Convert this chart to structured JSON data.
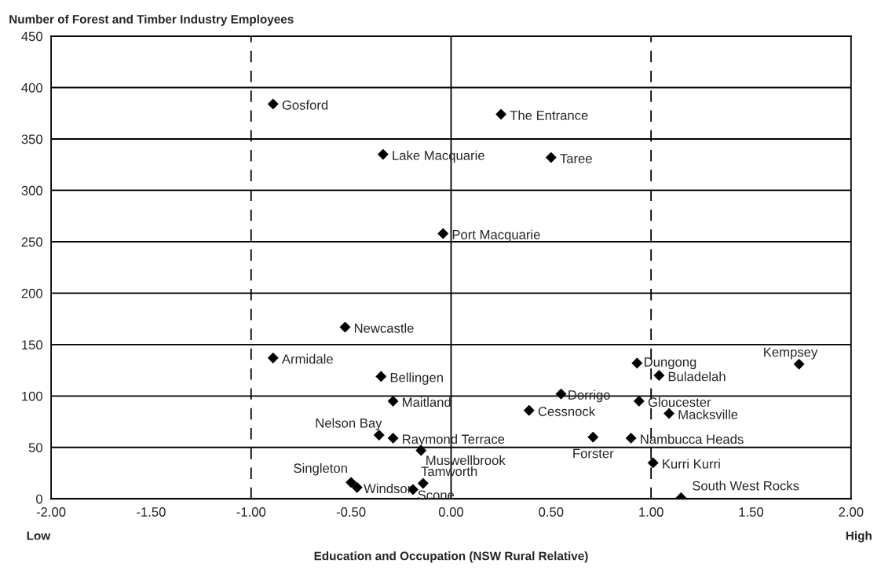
{
  "chart_data": {
    "type": "scatter",
    "ylabel": "Number of Forest and Timber Industry Employees",
    "xlabel": "Education and Occupation (NSW Rural Relative)",
    "x": [
      -0.89,
      0.25,
      -0.34,
      0.5,
      -0.04,
      -0.53,
      -0.89,
      -0.35,
      -0.29,
      -0.36,
      -0.29,
      -0.15,
      -0.5,
      -0.47,
      -0.14,
      -0.19,
      0.93,
      1.04,
      1.74,
      0.55,
      0.94,
      1.09,
      0.39,
      0.71,
      0.9,
      1.01,
      1.15
    ],
    "values": [
      384,
      374,
      335,
      332,
      258,
      167,
      137,
      119,
      95,
      62,
      59,
      47,
      16,
      11,
      15,
      9,
      132,
      120,
      131,
      102,
      95,
      83,
      86,
      60,
      59,
      35,
      1
    ],
    "color": "#000000",
    "marker": "diamond",
    "xlim": [
      -2,
      2
    ],
    "ylim": [
      0,
      450
    ],
    "xticks": [
      {
        "value": -2,
        "label": "-2.00"
      },
      {
        "value": -1.5,
        "label": "-1.50"
      },
      {
        "value": -1,
        "label": "-1.00"
      },
      {
        "value": -0.5,
        "label": "-0.50"
      },
      {
        "value": 0,
        "label": "0.00"
      },
      {
        "value": 0.5,
        "label": "0.50"
      },
      {
        "value": 1,
        "label": "1.00"
      },
      {
        "value": 1.5,
        "label": "1.50"
      },
      {
        "value": 2,
        "label": "2.00"
      }
    ],
    "yticks": [
      0,
      50,
      100,
      150,
      200,
      250,
      300,
      350,
      400,
      450
    ],
    "grid": "y",
    "ref_lines": [
      {
        "axis": "x",
        "value": -1,
        "line_style": "dashed",
        "color": "#000000"
      },
      {
        "axis": "x",
        "value": 0,
        "line_style": "solid",
        "color": "#000000"
      },
      {
        "axis": "x",
        "value": 1,
        "line_style": "dashed",
        "color": "#000000"
      }
    ],
    "annotations": [
      {
        "text": "Gosford",
        "x": -0.89,
        "y": 384
      },
      {
        "text": "The Entrance",
        "x": 0.25,
        "y": 374
      },
      {
        "text": "Lake Macquarie",
        "x": -0.34,
        "y": 335
      },
      {
        "text": "Taree",
        "x": 0.5,
        "y": 332
      },
      {
        "text": "Port Macquarie",
        "x": -0.04,
        "y": 258
      },
      {
        "text": "Newcastle",
        "x": -0.53,
        "y": 167
      },
      {
        "text": "Armidale",
        "x": -0.89,
        "y": 137
      },
      {
        "text": "Bellingen",
        "x": -0.35,
        "y": 119
      },
      {
        "text": "Maitland",
        "x": -0.29,
        "y": 95
      },
      {
        "text": "Nelson Bay",
        "x": -0.36,
        "y": 62
      },
      {
        "text": "Raymond Terrace",
        "x": -0.29,
        "y": 59
      },
      {
        "text": "Muswellbrook",
        "x": -0.15,
        "y": 47
      },
      {
        "text": "Singleton",
        "x": -0.5,
        "y": 16
      },
      {
        "text": "Windsor",
        "x": -0.47,
        "y": 11
      },
      {
        "text": "Tamworth",
        "x": -0.14,
        "y": 15
      },
      {
        "text": "Scone",
        "x": -0.19,
        "y": 9
      },
      {
        "text": "Dungong",
        "x": 0.93,
        "y": 132
      },
      {
        "text": "Buladelah",
        "x": 1.04,
        "y": 120
      },
      {
        "text": "Kempsey",
        "x": 1.74,
        "y": 131
      },
      {
        "text": "Dorrigo",
        "x": 0.55,
        "y": 102
      },
      {
        "text": "Gloucester",
        "x": 0.94,
        "y": 95
      },
      {
        "text": "Macksville",
        "x": 1.09,
        "y": 83
      },
      {
        "text": "Cessnock",
        "x": 0.39,
        "y": 86
      },
      {
        "text": "Forster",
        "x": 0.71,
        "y": 60
      },
      {
        "text": "Nambucca Heads",
        "x": 0.9,
        "y": 59
      },
      {
        "text": "Kurri Kurri",
        "x": 1.01,
        "y": 35
      },
      {
        "text": "South West Rocks",
        "x": 1.15,
        "y": 1
      },
      "Low",
      "High"
    ]
  }
}
